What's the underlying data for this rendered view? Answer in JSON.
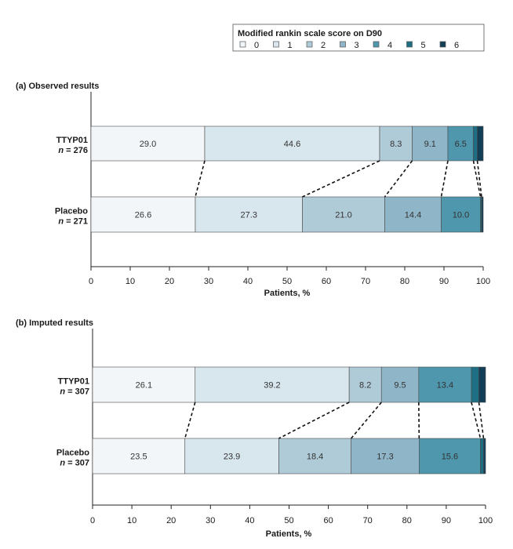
{
  "legend": {
    "title": "Modified rankin scale score on D90",
    "labels": [
      "0",
      "1",
      "2",
      "3",
      "4",
      "5",
      "6"
    ],
    "colors": [
      "#f2f6f9",
      "#d8e6ee",
      "#b0cbd8",
      "#8fb6c8",
      "#4f97ad",
      "#1e6f84",
      "#123f55"
    ]
  },
  "chart_data": [
    {
      "type": "bar",
      "stacked": true,
      "orientation": "horizontal",
      "title": "(a) Observed results",
      "xlabel": "Patients, %",
      "xlim": [
        0,
        100
      ],
      "xticks": [
        "0",
        "10",
        "20",
        "30",
        "40",
        "50",
        "60",
        "70",
        "80",
        "90",
        "100"
      ],
      "groups": [
        {
          "name": "TTYP01",
          "n_text": "n = 276",
          "values": [
            29.0,
            44.6,
            8.3,
            9.1,
            6.5,
            1.0,
            1.5
          ],
          "labels": [
            "29.0",
            "44.6",
            "8.3",
            "9.1",
            "6.5",
            "",
            ""
          ]
        },
        {
          "name": "Placebo",
          "n_text": "n = 271",
          "values": [
            26.6,
            27.3,
            21.0,
            14.4,
            10.0,
            0.3,
            0.4
          ],
          "labels": [
            "26.6",
            "27.3",
            "21.0",
            "14.4",
            "10.0",
            "",
            ""
          ]
        }
      ]
    },
    {
      "type": "bar",
      "stacked": true,
      "orientation": "horizontal",
      "title": "(b) Imputed results",
      "xlabel": "Patients, %",
      "xlim": [
        0,
        100
      ],
      "xticks": [
        "0",
        "10",
        "20",
        "30",
        "40",
        "50",
        "60",
        "70",
        "80",
        "90",
        "100"
      ],
      "groups": [
        {
          "name": "TTYP01",
          "n_text": "n = 307",
          "values": [
            26.1,
            39.2,
            8.2,
            9.5,
            13.4,
            1.9,
            1.7
          ],
          "labels": [
            "26.1",
            "39.2",
            "8.2",
            "9.5",
            "13.4",
            "",
            ""
          ]
        },
        {
          "name": "Placebo",
          "n_text": "n = 307",
          "values": [
            23.5,
            23.9,
            18.4,
            17.3,
            15.6,
            0.8,
            0.5
          ],
          "labels": [
            "23.5",
            "23.9",
            "18.4",
            "17.3",
            "15.6",
            "",
            ""
          ]
        }
      ]
    }
  ]
}
